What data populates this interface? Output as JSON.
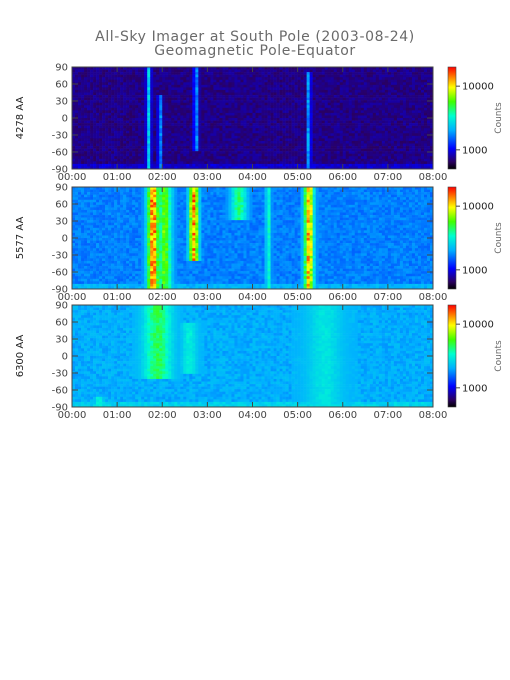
{
  "chart_data": {
    "type": "heatmap",
    "title": "All-Sky Imager at South Pole (2003-08-24)",
    "subtitle": "Geomagnetic Pole-Equator",
    "x_tick_labels": [
      "00:00",
      "01:00",
      "02:00",
      "03:00",
      "04:00",
      "05:00",
      "06:00",
      "07:00",
      "08:00"
    ],
    "x_range_hours": [
      0,
      8
    ],
    "y_tick_labels": [
      "90",
      "60",
      "30",
      "0",
      "-30",
      "-60",
      "-90"
    ],
    "y_range": [
      -90,
      90
    ],
    "colorbar": {
      "label": "Counts",
      "tick_labels": [
        "10000",
        "1000"
      ],
      "scale": "log",
      "range": [
        500,
        20000
      ]
    },
    "panels": [
      {
        "ylabel": "4278 AA",
        "background_level": 0.1,
        "events": [
          {
            "t": 1.7,
            "w": 0.06,
            "level": 0.45,
            "lat": [
              -90,
              90
            ]
          },
          {
            "t": 1.95,
            "w": 0.05,
            "level": 0.4,
            "lat": [
              -90,
              40
            ]
          },
          {
            "t": 2.75,
            "w": 0.06,
            "level": 0.38,
            "lat": [
              -60,
              90
            ]
          },
          {
            "t": 5.25,
            "w": 0.05,
            "level": 0.42,
            "lat": [
              -90,
              80
            ]
          }
        ]
      },
      {
        "ylabel": "5577 AA",
        "background_level": 0.33,
        "events": [
          {
            "t": 1.8,
            "w": 0.15,
            "level": 0.95,
            "lat": [
              -90,
              90
            ]
          },
          {
            "t": 2.05,
            "w": 0.18,
            "level": 0.7,
            "lat": [
              -90,
              90
            ]
          },
          {
            "t": 2.7,
            "w": 0.12,
            "level": 0.92,
            "lat": [
              -40,
              90
            ]
          },
          {
            "t": 3.7,
            "w": 0.2,
            "level": 0.6,
            "lat": [
              30,
              90
            ]
          },
          {
            "t": 4.35,
            "w": 0.06,
            "level": 0.55,
            "lat": [
              -90,
              90
            ]
          },
          {
            "t": 5.25,
            "w": 0.12,
            "level": 0.9,
            "lat": [
              -90,
              90
            ]
          }
        ]
      },
      {
        "ylabel": "6300 AA",
        "background_level": 0.38,
        "events": [
          {
            "t": 1.9,
            "w": 0.35,
            "level": 0.62,
            "lat": [
              -40,
              90
            ]
          },
          {
            "t": 2.6,
            "w": 0.2,
            "level": 0.5,
            "lat": [
              -30,
              60
            ]
          },
          {
            "t": 5.6,
            "w": 0.45,
            "level": 0.48,
            "lat": [
              -90,
              90
            ]
          },
          {
            "t": 0.6,
            "w": 0.1,
            "level": 0.52,
            "lat": [
              -90,
              -70
            ]
          }
        ]
      }
    ]
  }
}
